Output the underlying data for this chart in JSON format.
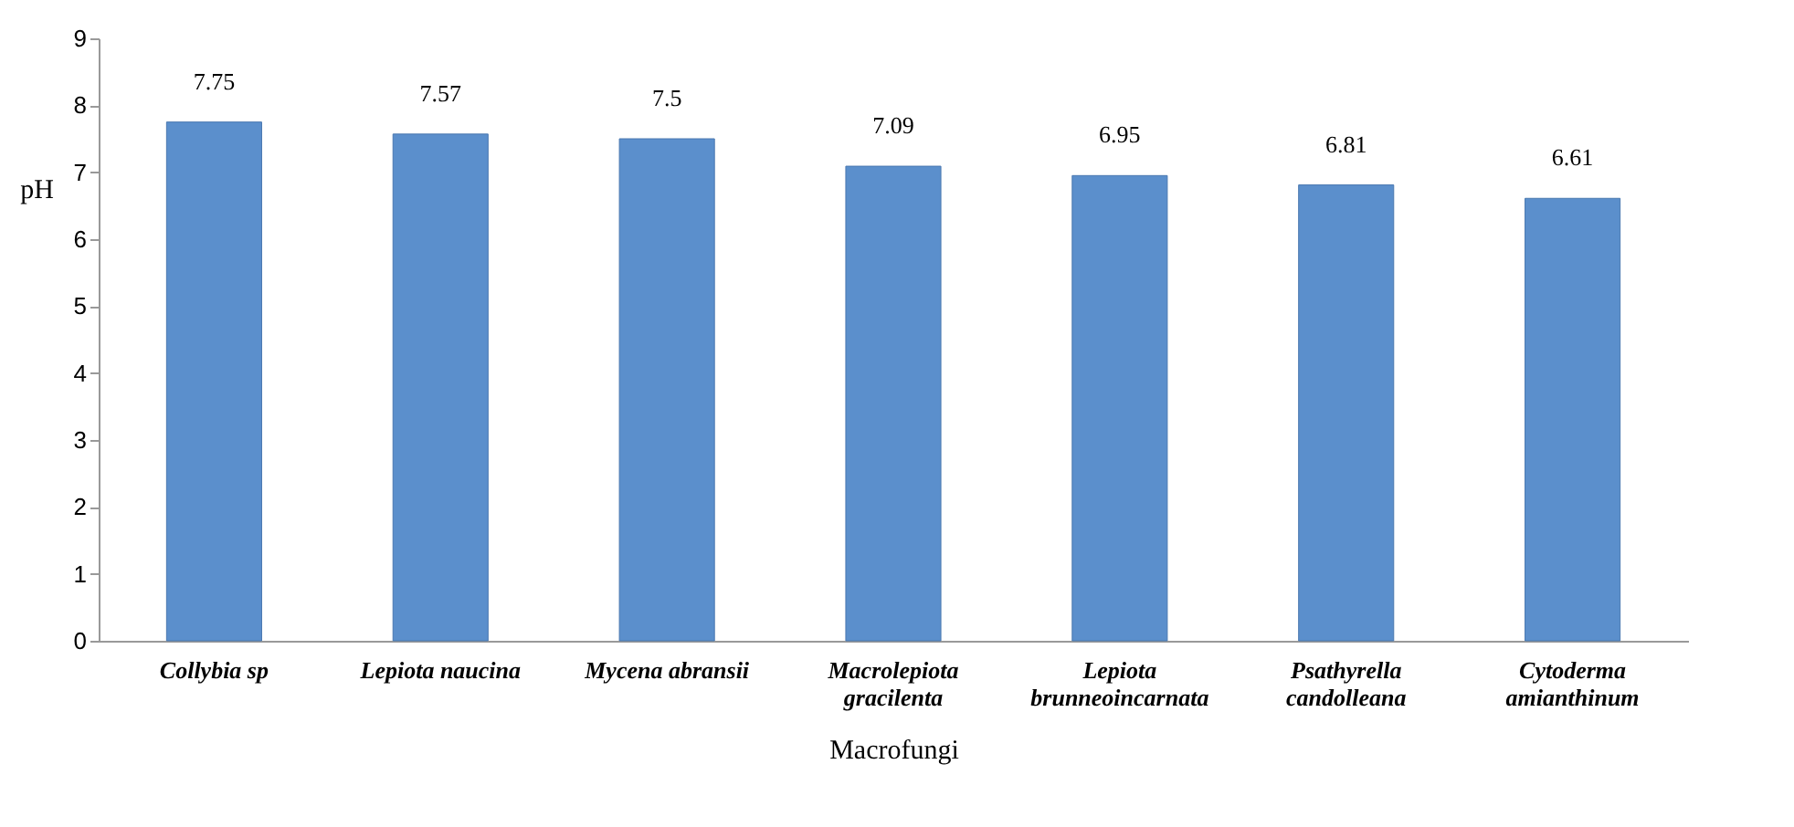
{
  "chart_data": {
    "type": "bar",
    "categories": [
      "Collybia  sp",
      "Lepiota naucina",
      "Mycena  abransii",
      "Macrolepiota\ngracilenta",
      "Lepiota\nbrunneoincarnata",
      "Psathyrella\ncandolleana",
      "Cytoderma\namianthinum"
    ],
    "values": [
      7.75,
      7.57,
      7.5,
      7.09,
      6.95,
      6.81,
      6.61
    ],
    "color": "#5b8fcc",
    "data_labels": true,
    "xlabel": "Macrofungi",
    "ylabel": "pH",
    "ylim": [
      0,
      9
    ],
    "yticks": [
      0,
      1,
      2,
      3,
      4,
      5,
      6,
      7,
      8,
      9
    ],
    "grid": false
  }
}
